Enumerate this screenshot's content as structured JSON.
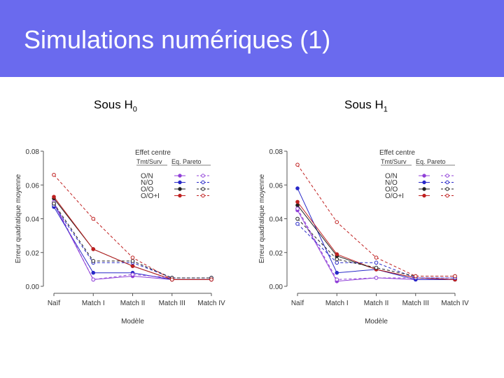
{
  "slide": {
    "title": "Simulations numériques (1)",
    "left_caption_main": "Sous H",
    "left_caption_sub": "0",
    "right_caption_main": "Sous H",
    "right_caption_sub": "1"
  },
  "colors": {
    "header": "#6a6aee",
    "violet": "#9040d8",
    "blue": "#2828c8",
    "black": "#222222",
    "red": "#c02020"
  },
  "chart_data": [
    {
      "type": "line",
      "panel": "left",
      "title": "",
      "xlabel": "Modèle",
      "ylabel": "Erreur quadratique moyenne",
      "categories": [
        "Naïf",
        "Match I",
        "Match II",
        "Match III",
        "Match IV"
      ],
      "y_ticks": [
        "0.00",
        "0.02",
        "0.04",
        "0.06",
        "0.08"
      ],
      "ylim": [
        0,
        0.08
      ],
      "legend": {
        "header": "Effet centre",
        "col1": "Tmt/Surv",
        "col2": "Eq. Pareto",
        "labels": [
          "O/N",
          "N/O",
          "O/O",
          "O/O+I"
        ]
      },
      "series": [
        {
          "name": "O/N Tmt/Surv",
          "color": "violet",
          "style": "solid",
          "marker": "filled",
          "values": [
            0.049,
            0.004,
            0.006,
            0.004,
            0.004
          ]
        },
        {
          "name": "N/O Tmt/Surv",
          "color": "blue",
          "style": "solid",
          "marker": "filled",
          "values": [
            0.047,
            0.008,
            0.008,
            0.004,
            0.004
          ]
        },
        {
          "name": "O/O Tmt/Surv",
          "color": "black",
          "style": "solid",
          "marker": "filled",
          "values": [
            0.052,
            0.022,
            0.012,
            0.004,
            0.004
          ]
        },
        {
          "name": "O/O+I Tmt/Surv",
          "color": "red",
          "style": "solid",
          "marker": "filled",
          "values": [
            0.053,
            0.022,
            0.012,
            0.004,
            0.004
          ]
        },
        {
          "name": "O/N Eq. Pareto",
          "color": "violet",
          "style": "dashed",
          "marker": "open",
          "values": [
            0.05,
            0.004,
            0.007,
            0.005,
            0.005
          ]
        },
        {
          "name": "N/O Eq. Pareto",
          "color": "blue",
          "style": "dashed",
          "marker": "open",
          "values": [
            0.048,
            0.014,
            0.014,
            0.005,
            0.005
          ]
        },
        {
          "name": "O/O Eq. Pareto",
          "color": "black",
          "style": "dashed",
          "marker": "open",
          "values": [
            0.049,
            0.015,
            0.015,
            0.005,
            0.005
          ]
        },
        {
          "name": "O/O+I Eq. Pareto",
          "color": "red",
          "style": "dashed",
          "marker": "open",
          "values": [
            0.066,
            0.04,
            0.017,
            0.004,
            0.004
          ]
        }
      ]
    },
    {
      "type": "line",
      "panel": "right",
      "title": "",
      "xlabel": "Modèle",
      "ylabel": "Erreur quadratique moyenne",
      "categories": [
        "Naïf",
        "Match I",
        "Match II",
        "Match III",
        "Match IV"
      ],
      "y_ticks": [
        "0.00",
        "0.02",
        "0.04",
        "0.06",
        "0.08"
      ],
      "ylim": [
        0,
        0.08
      ],
      "legend": {
        "header": "Effet centre",
        "col1": "Tmt/Surv",
        "col2": "Eq. Pareto",
        "labels": [
          "O/N",
          "N/O",
          "O/O",
          "O/O+I"
        ]
      },
      "series": [
        {
          "name": "O/N Tmt/Surv",
          "color": "violet",
          "style": "solid",
          "marker": "filled",
          "values": [
            0.045,
            0.003,
            0.005,
            0.004,
            0.004
          ]
        },
        {
          "name": "N/O Tmt/Surv",
          "color": "blue",
          "style": "solid",
          "marker": "filled",
          "values": [
            0.058,
            0.008,
            0.01,
            0.004,
            0.004
          ]
        },
        {
          "name": "O/O Tmt/Surv",
          "color": "black",
          "style": "solid",
          "marker": "filled",
          "values": [
            0.048,
            0.018,
            0.01,
            0.005,
            0.004
          ]
        },
        {
          "name": "O/O+I Tmt/Surv",
          "color": "red",
          "style": "solid",
          "marker": "filled",
          "values": [
            0.05,
            0.019,
            0.01,
            0.005,
            0.004
          ]
        },
        {
          "name": "O/N Eq. Pareto",
          "color": "violet",
          "style": "dashed",
          "marker": "open",
          "values": [
            0.046,
            0.004,
            0.005,
            0.005,
            0.005
          ]
        },
        {
          "name": "N/O Eq. Pareto",
          "color": "blue",
          "style": "dashed",
          "marker": "open",
          "values": [
            0.037,
            0.014,
            0.014,
            0.005,
            0.005
          ]
        },
        {
          "name": "O/O Eq. Pareto",
          "color": "black",
          "style": "dashed",
          "marker": "open",
          "values": [
            0.04,
            0.016,
            0.011,
            0.006,
            0.006
          ]
        },
        {
          "name": "O/O+I Eq. Pareto",
          "color": "red",
          "style": "dashed",
          "marker": "open",
          "values": [
            0.072,
            0.038,
            0.017,
            0.006,
            0.006
          ]
        }
      ]
    }
  ]
}
